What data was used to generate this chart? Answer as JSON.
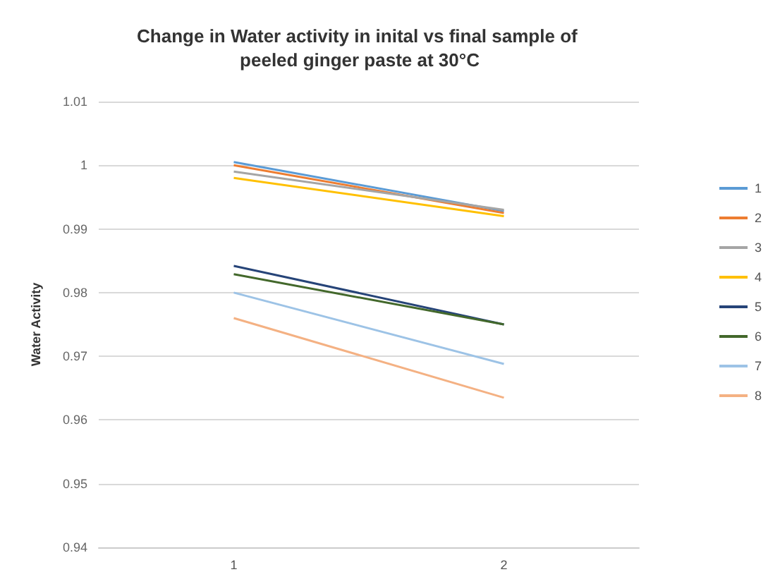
{
  "chart_data": {
    "type": "line",
    "title": "Change in Water activity in inital vs final sample of peeled ginger paste at 30°C",
    "ylabel": "Water Activity",
    "categories": [
      "1",
      "2"
    ],
    "series": [
      {
        "name": "1",
        "color": "#5b9bd5",
        "values": [
          1.0005,
          0.9928
        ]
      },
      {
        "name": "2",
        "color": "#ed7d31",
        "values": [
          1.0,
          0.9925
        ]
      },
      {
        "name": "3",
        "color": "#a5a5a5",
        "values": [
          0.999,
          0.993
        ]
      },
      {
        "name": "4",
        "color": "#ffc000",
        "values": [
          0.998,
          0.992
        ]
      },
      {
        "name": "5",
        "color": "#264478",
        "values": [
          0.9842,
          0.975
        ]
      },
      {
        "name": "6",
        "color": "#43682b",
        "values": [
          0.9829,
          0.975
        ]
      },
      {
        "name": "7",
        "color": "#9dc3e6",
        "values": [
          0.98,
          0.9688
        ]
      },
      {
        "name": "8",
        "color": "#f4b183",
        "values": [
          0.976,
          0.9635
        ]
      }
    ],
    "ylim": [
      0.94,
      1.01
    ],
    "yticks": [
      0.94,
      0.95,
      0.96,
      0.97,
      0.98,
      0.99,
      1,
      1.01
    ],
    "grid": "y",
    "legend": "right",
    "marker": "none",
    "line_style": "solid"
  }
}
